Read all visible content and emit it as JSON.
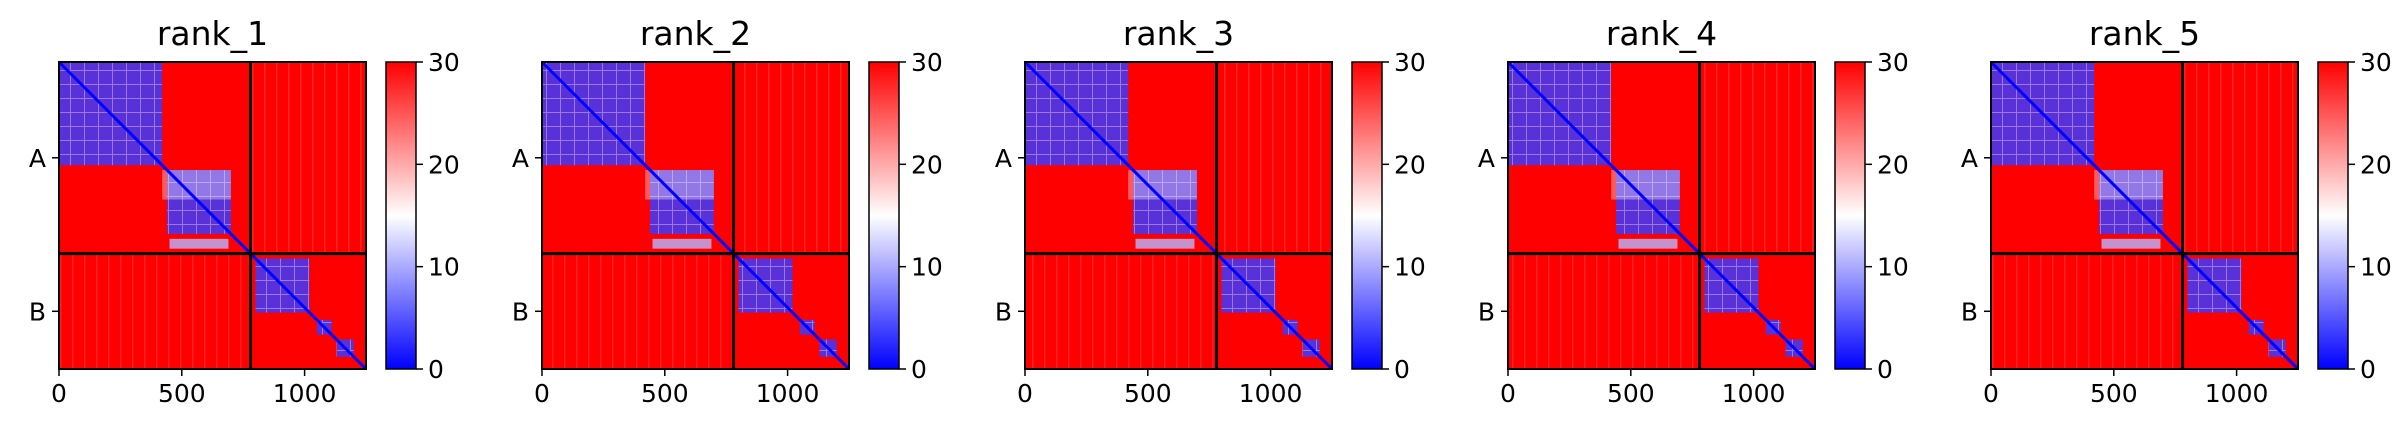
{
  "colors": {
    "low": "#0000ff",
    "mid": "#ffffff",
    "high": "#ff0000",
    "separator": "#000000",
    "axis": "#000000"
  },
  "chart_data": [
    {
      "type": "heatmap",
      "title": "rank_1",
      "xlim": [
        0,
        1250
      ],
      "x_ticks": [
        0,
        500,
        1000
      ],
      "y_tick_labels": [
        "A",
        "B"
      ],
      "chain_boundary": 780,
      "colorbar": {
        "range": [
          0,
          30
        ],
        "ticks": [
          0,
          10,
          20,
          30
        ],
        "colormap": "bwr"
      },
      "description": "pairwise predicted aligned error map"
    },
    {
      "type": "heatmap",
      "title": "rank_2",
      "xlim": [
        0,
        1250
      ],
      "x_ticks": [
        0,
        500,
        1000
      ],
      "y_tick_labels": [
        "A",
        "B"
      ],
      "chain_boundary": 780,
      "colorbar": {
        "range": [
          0,
          30
        ],
        "ticks": [
          0,
          10,
          20,
          30
        ],
        "colormap": "bwr"
      }
    },
    {
      "type": "heatmap",
      "title": "rank_3",
      "xlim": [
        0,
        1250
      ],
      "x_ticks": [
        0,
        500,
        1000
      ],
      "y_tick_labels": [
        "A",
        "B"
      ],
      "chain_boundary": 780,
      "colorbar": {
        "range": [
          0,
          30
        ],
        "ticks": [
          0,
          10,
          20,
          30
        ],
        "colormap": "bwr"
      }
    },
    {
      "type": "heatmap",
      "title": "rank_4",
      "xlim": [
        0,
        1250
      ],
      "x_ticks": [
        0,
        500,
        1000
      ],
      "y_tick_labels": [
        "A",
        "B"
      ],
      "chain_boundary": 780,
      "colorbar": {
        "range": [
          0,
          30
        ],
        "ticks": [
          0,
          10,
          20,
          30
        ],
        "colormap": "bwr"
      }
    },
    {
      "type": "heatmap",
      "title": "rank_5",
      "xlim": [
        0,
        1250
      ],
      "x_ticks": [
        0,
        500,
        1000
      ],
      "y_tick_labels": [
        "A",
        "B"
      ],
      "chain_boundary": 780,
      "colorbar": {
        "range": [
          0,
          30
        ],
        "ticks": [
          0,
          10,
          20,
          30
        ],
        "colormap": "bwr"
      }
    }
  ]
}
